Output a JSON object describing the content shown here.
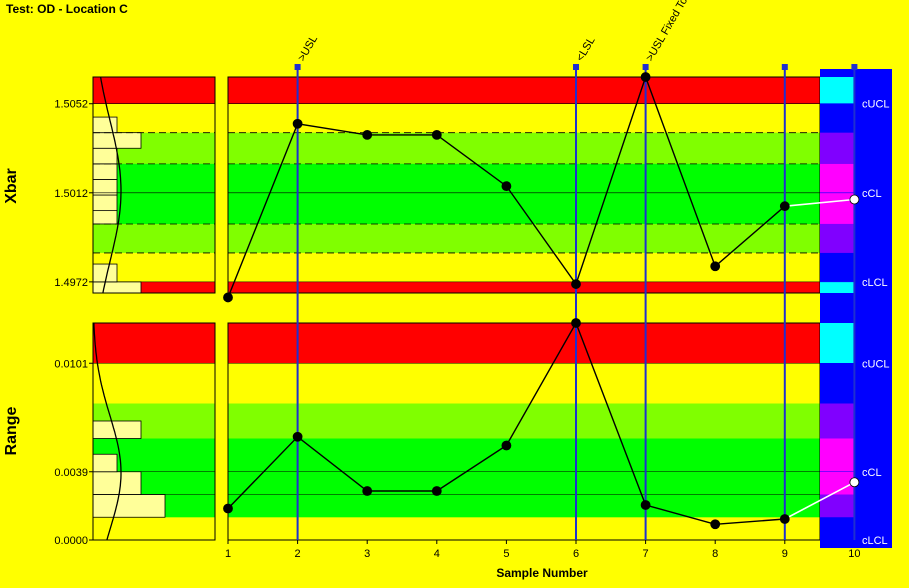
{
  "title": "Test: OD - Location C",
  "colors": {
    "background": "#ffff00",
    "outer_zone": "#ff0000",
    "warning_zone": "#ffff00",
    "mid_zone": "#80ff00",
    "center_zone": "#00ff00",
    "event_line": "#1f2fd0",
    "sidebar": "#0000ff",
    "sidebar_cyan": "#00ffff",
    "sidebar_purple": "#8000ff",
    "sidebar_magenta": "#ff00ff",
    "data_line": "#000000",
    "histogram_bar": "#ffff99"
  },
  "chart_data": [
    {
      "name": "Xbar",
      "type": "line",
      "ylabel": "Xbar",
      "xlabel": "Sample Number",
      "x": [
        1,
        2,
        3,
        4,
        5,
        6,
        7,
        8,
        9,
        10
      ],
      "values": [
        1.4965,
        1.5043,
        1.5038,
        1.5038,
        1.5015,
        1.4971,
        1.5064,
        1.4979,
        1.5006,
        1.5009
      ],
      "yticks": [
        "1.4972",
        "1.5012",
        "1.5052"
      ],
      "ylim": [
        1.4967,
        1.5064
      ],
      "red_above": 1.5052,
      "red_below": 1.4972,
      "green_band": [
        1.4985,
        1.5039
      ],
      "center_band": [
        1.4998,
        1.5025
      ],
      "dashed_lines": [
        1.4985,
        1.4998,
        1.5025,
        1.5039
      ],
      "right_labels": [
        "cUCL",
        "cCL",
        "cLCL"
      ],
      "right_label_values": [
        1.5052,
        1.5012,
        1.4972
      ],
      "histogram": [
        {
          "from": 1.4967,
          "to": 1.4972,
          "count": 2
        },
        {
          "from": 1.4972,
          "to": 1.498,
          "count": 1
        },
        {
          "from": 1.4998,
          "to": 1.5004,
          "count": 1
        },
        {
          "from": 1.5004,
          "to": 1.5011,
          "count": 1
        },
        {
          "from": 1.5011,
          "to": 1.5018,
          "count": 1
        },
        {
          "from": 1.5018,
          "to": 1.5025,
          "count": 1
        },
        {
          "from": 1.5025,
          "to": 1.5032,
          "count": 1
        },
        {
          "from": 1.5032,
          "to": 1.5039,
          "count": 2
        },
        {
          "from": 1.5039,
          "to": 1.5046,
          "count": 1
        }
      ]
    },
    {
      "name": "Range",
      "type": "line",
      "ylabel": "Range",
      "xlabel": "Sample Number",
      "x": [
        1,
        2,
        3,
        4,
        5,
        6,
        7,
        8,
        9,
        10
      ],
      "values": [
        0.0018,
        0.0059,
        0.0028,
        0.0028,
        0.0054,
        0.0124,
        0.002,
        0.0009,
        0.0012,
        0.0033
      ],
      "yticks": [
        "0.0000",
        "0.0039",
        "0.0101"
      ],
      "ylim": [
        0,
        0.0124
      ],
      "red_above": 0.0101,
      "green_band": [
        0.0013,
        0.0078
      ],
      "center_band": [
        0.0013,
        0.0058
      ],
      "thin_lines": [
        0.0026,
        0.0039
      ],
      "right_labels": [
        "cUCL",
        "cCL",
        "cLCL"
      ],
      "right_label_values": [
        0.0101,
        0.0039,
        0.0
      ],
      "histogram": [
        {
          "from": 0.0013,
          "to": 0.0026,
          "count": 3
        },
        {
          "from": 0.0026,
          "to": 0.0039,
          "count": 2
        },
        {
          "from": 0.0039,
          "to": 0.0049,
          "count": 1
        },
        {
          "from": 0.0058,
          "to": 0.0068,
          "count": 2
        }
      ]
    }
  ],
  "xticks": [
    "1",
    "2",
    "3",
    "4",
    "5",
    "6",
    "7",
    "8",
    "9",
    "10"
  ],
  "events": [
    {
      "sample": 2,
      "label": ">USL",
      "marker": "square"
    },
    {
      "sample": 6,
      "label": "<LSL",
      "marker": "square"
    },
    {
      "sample": 7,
      "label": ">USL Fixed Tool",
      "marker": "square"
    },
    {
      "sample": 9,
      "label": "",
      "marker": "square"
    },
    {
      "sample": 10,
      "label": "",
      "marker": "square"
    }
  ]
}
